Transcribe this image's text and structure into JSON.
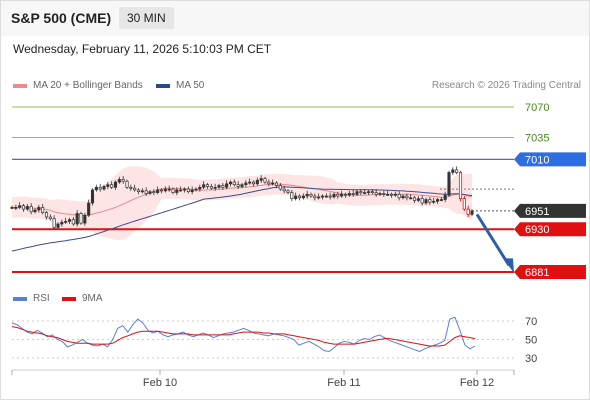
{
  "header": {
    "instrument": "S&P 500 (CME)",
    "timeframe": "30 MIN",
    "datetime": "Wednesday, February 11, 2026 5:10:03 PM CET"
  },
  "legend": {
    "bollinger_label": "MA 20 + Bollinger Bands",
    "ma50_label": "MA 50",
    "credit": "Research © 2026 Trading Central",
    "rsi_label": "RSI",
    "rsi_ma_label": "9MA"
  },
  "colors": {
    "resistance": "#3b6fd4",
    "support": "#dd1111",
    "target_line": "#8bc34a",
    "bollinger_fill": "#fde0e0",
    "ma20": "#e58a8a",
    "ma50": "#3c4a8a",
    "candle": "#333333",
    "candle_down": "#cc0000",
    "rsi": "#5b7fd6",
    "rsi_ma": "#dd1111",
    "arrow": "#2b5fa8"
  },
  "chart_data": {
    "type": "candlestick",
    "x_labels": [
      "Feb 10",
      "Feb 11",
      "Feb 12"
    ],
    "levels": {
      "targets": [
        7070,
        7035
      ],
      "resistance": 7010,
      "current": 6951,
      "support": 6930,
      "next_target": 6881
    },
    "level_labels": [
      "7070",
      "7035",
      "7010",
      "6951",
      "6930",
      "6881"
    ],
    "close_path": [
      6955,
      6955,
      6957,
      6953,
      6956,
      6950,
      6952,
      6955,
      6949,
      6944,
      6942,
      6932,
      6936,
      6938,
      6939,
      6941,
      6936,
      6948,
      6937,
      6946,
      6960,
      6975,
      6978,
      6976,
      6979,
      6981,
      6978,
      6984,
      6987,
      6985,
      6978,
      6977,
      6975,
      6973,
      6974,
      6971,
      6973,
      6972,
      6975,
      6974,
      6976,
      6976,
      6972,
      6975,
      6975,
      6976,
      6973,
      6975,
      6976,
      6978,
      6981,
      6979,
      6977,
      6978,
      6980,
      6978,
      6982,
      6984,
      6981,
      6979,
      6981,
      6983,
      6984,
      6982,
      6986,
      6988,
      6984,
      6982,
      6983,
      6980,
      6976,
      6974,
      6972,
      6965,
      6968,
      6966,
      6968,
      6970,
      6968,
      6966,
      6967,
      6968,
      6968,
      6967,
      6970,
      6968,
      6970,
      6969,
      6971,
      6970,
      6973,
      6972,
      6972,
      6973,
      6972,
      6970,
      6971,
      6970,
      6970,
      6969,
      6970,
      6966,
      6968,
      6966,
      6966,
      6963,
      6965,
      6960,
      6964,
      6961,
      6962,
      6964,
      6964,
      6969,
      6995,
      6998,
      6995,
      6965,
      6953,
      6947,
      6951
    ],
    "rsi": {
      "ylim": [
        20,
        80
      ],
      "ticks": [
        70,
        50,
        30
      ],
      "values": [
        68,
        66,
        62,
        58,
        56,
        60,
        57,
        53,
        55,
        50,
        48,
        42,
        44,
        47,
        50,
        46,
        44,
        43,
        45,
        42,
        50,
        62,
        65,
        58,
        66,
        72,
        68,
        60,
        57,
        59,
        55,
        53,
        55,
        56,
        58,
        55,
        53,
        55,
        57,
        55,
        52,
        54,
        56,
        57,
        58,
        60,
        62,
        60,
        57,
        56,
        55,
        54,
        56,
        55,
        54,
        52,
        50,
        44,
        46,
        48,
        45,
        42,
        38,
        37,
        41,
        46,
        48,
        47,
        45,
        49,
        51,
        50,
        53,
        55,
        52,
        49,
        47,
        45,
        43,
        41,
        39,
        37,
        40,
        42,
        44,
        46,
        49,
        72,
        74,
        60,
        44,
        40,
        43
      ],
      "ma_values": [
        64,
        63,
        61,
        59,
        58,
        57,
        56,
        54,
        53,
        52,
        50,
        48,
        47,
        46,
        46,
        46,
        45,
        45,
        45,
        45,
        46,
        49,
        52,
        54,
        56,
        58,
        59,
        59,
        59,
        59,
        58,
        57,
        56,
        56,
        56,
        56,
        55,
        55,
        55,
        55,
        55,
        55,
        55,
        55,
        56,
        57,
        58,
        58,
        58,
        58,
        57,
        57,
        56,
        56,
        56,
        55,
        54,
        53,
        52,
        51,
        50,
        49,
        47,
        46,
        45,
        45,
        45,
        45,
        45,
        46,
        47,
        48,
        49,
        50,
        51,
        51,
        50,
        49,
        48,
        47,
        46,
        45,
        44,
        43,
        43,
        43,
        44,
        48,
        52,
        54,
        53,
        52,
        51
      ]
    }
  }
}
